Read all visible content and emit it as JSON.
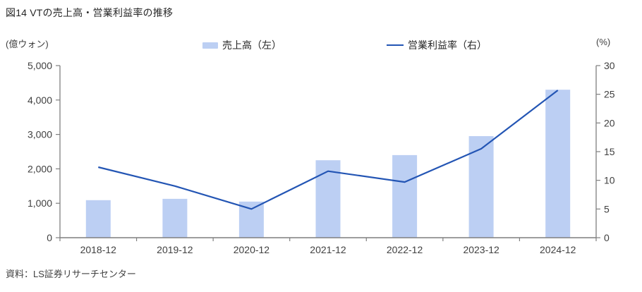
{
  "title": "図14 VTの売上高・営業利益率の推移",
  "source": "資料：LS証券リサーチセンター",
  "colors": {
    "bar_fill": "#bccff3",
    "line_stroke": "#2355b4",
    "axis": "#7f7f7f",
    "tick_text": "#404040"
  },
  "chart_data": {
    "type": "bar",
    "subtype": "bar+line combo",
    "title": "図14 VTの売上高・営業利益率の推移",
    "categories": [
      "2018-12",
      "2019-12",
      "2020-12",
      "2021-12",
      "2022-12",
      "2023-12",
      "2024-12"
    ],
    "series": [
      {
        "name": "売上高（左）",
        "type": "bar",
        "axis": "left",
        "color": "#bccff3",
        "values": [
          1090,
          1130,
          1050,
          2250,
          2400,
          2950,
          4300
        ]
      },
      {
        "name": "営業利益率（右）",
        "type": "line",
        "axis": "right",
        "color": "#2355b4",
        "values": [
          12.3,
          9.0,
          5.0,
          11.6,
          9.7,
          15.5,
          25.7
        ]
      }
    ],
    "left_axis": {
      "unit": "(億ウォン)",
      "min": 0,
      "max": 5000,
      "step": 1000
    },
    "right_axis": {
      "unit": "(%)",
      "min": 0,
      "max": 30,
      "step": 5
    },
    "grid": false,
    "legend_position": "top"
  }
}
